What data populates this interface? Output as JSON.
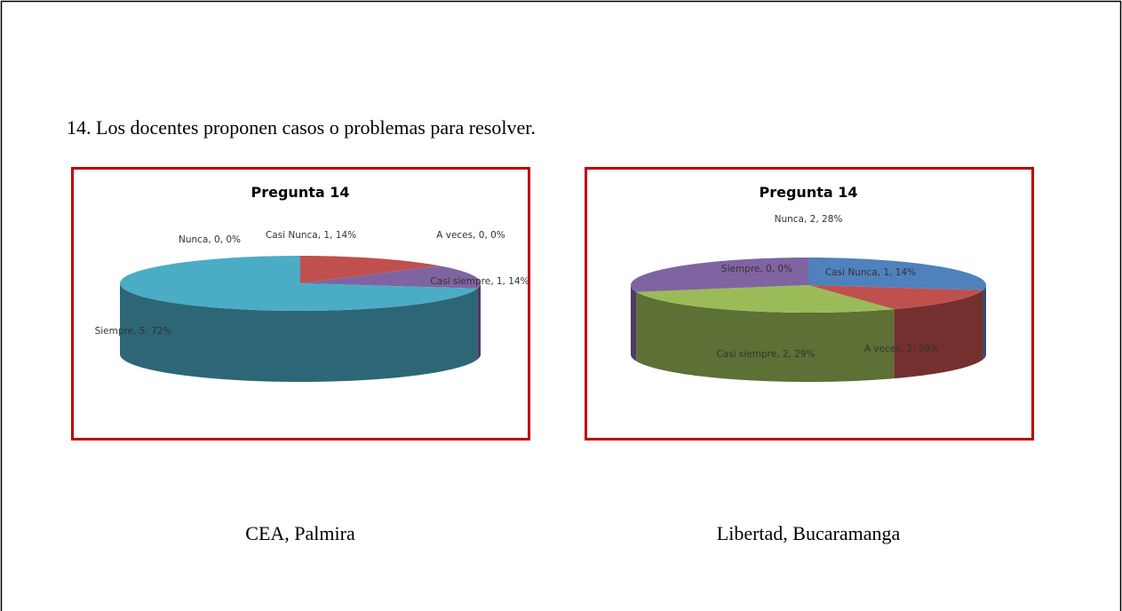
{
  "heading": "14. Los docentes proponen casos o problemas para resolver.",
  "chart_data": [
    {
      "type": "pie3d",
      "title": "Pregunta 14",
      "caption": "CEA, Palmira",
      "categories": [
        "Nunca",
        "Casi Nunca",
        "A veces",
        "Casi siempre",
        "Siempre"
      ],
      "values": [
        0,
        1,
        0,
        1,
        5
      ],
      "percents": [
        0,
        14,
        0,
        14,
        72
      ],
      "value_labels": [
        "Nunca, 0, 0%",
        "Casi Nunca, 1, 14%",
        "A veces, 0, 0%",
        "Casi siempre, 1, 14%",
        "Siempre, 5, 72%"
      ],
      "colors": [
        "#4f81bd",
        "#c0504d",
        "#9bbb59",
        "#8064a2",
        "#4bacc6"
      ]
    },
    {
      "type": "pie3d",
      "title": "Pregunta 14",
      "caption": "Libertad, Bucaramanga",
      "categories": [
        "Nunca",
        "Casi Nunca",
        "A veces",
        "Casi siempre",
        "Siempre"
      ],
      "values": [
        2,
        1,
        2,
        2,
        0
      ],
      "percents": [
        28,
        14,
        29,
        29,
        0
      ],
      "value_labels": [
        "Nunca, 2, 28%",
        "Casi Nunca, 1, 14%",
        "A veces, 2, 29%",
        "Casi siempre, 2, 29%",
        "Siempre, 0, 0%"
      ],
      "colors": [
        "#4f81bd",
        "#c0504d",
        "#9bbb59",
        "#8064a2",
        "#4bacc6"
      ]
    }
  ]
}
